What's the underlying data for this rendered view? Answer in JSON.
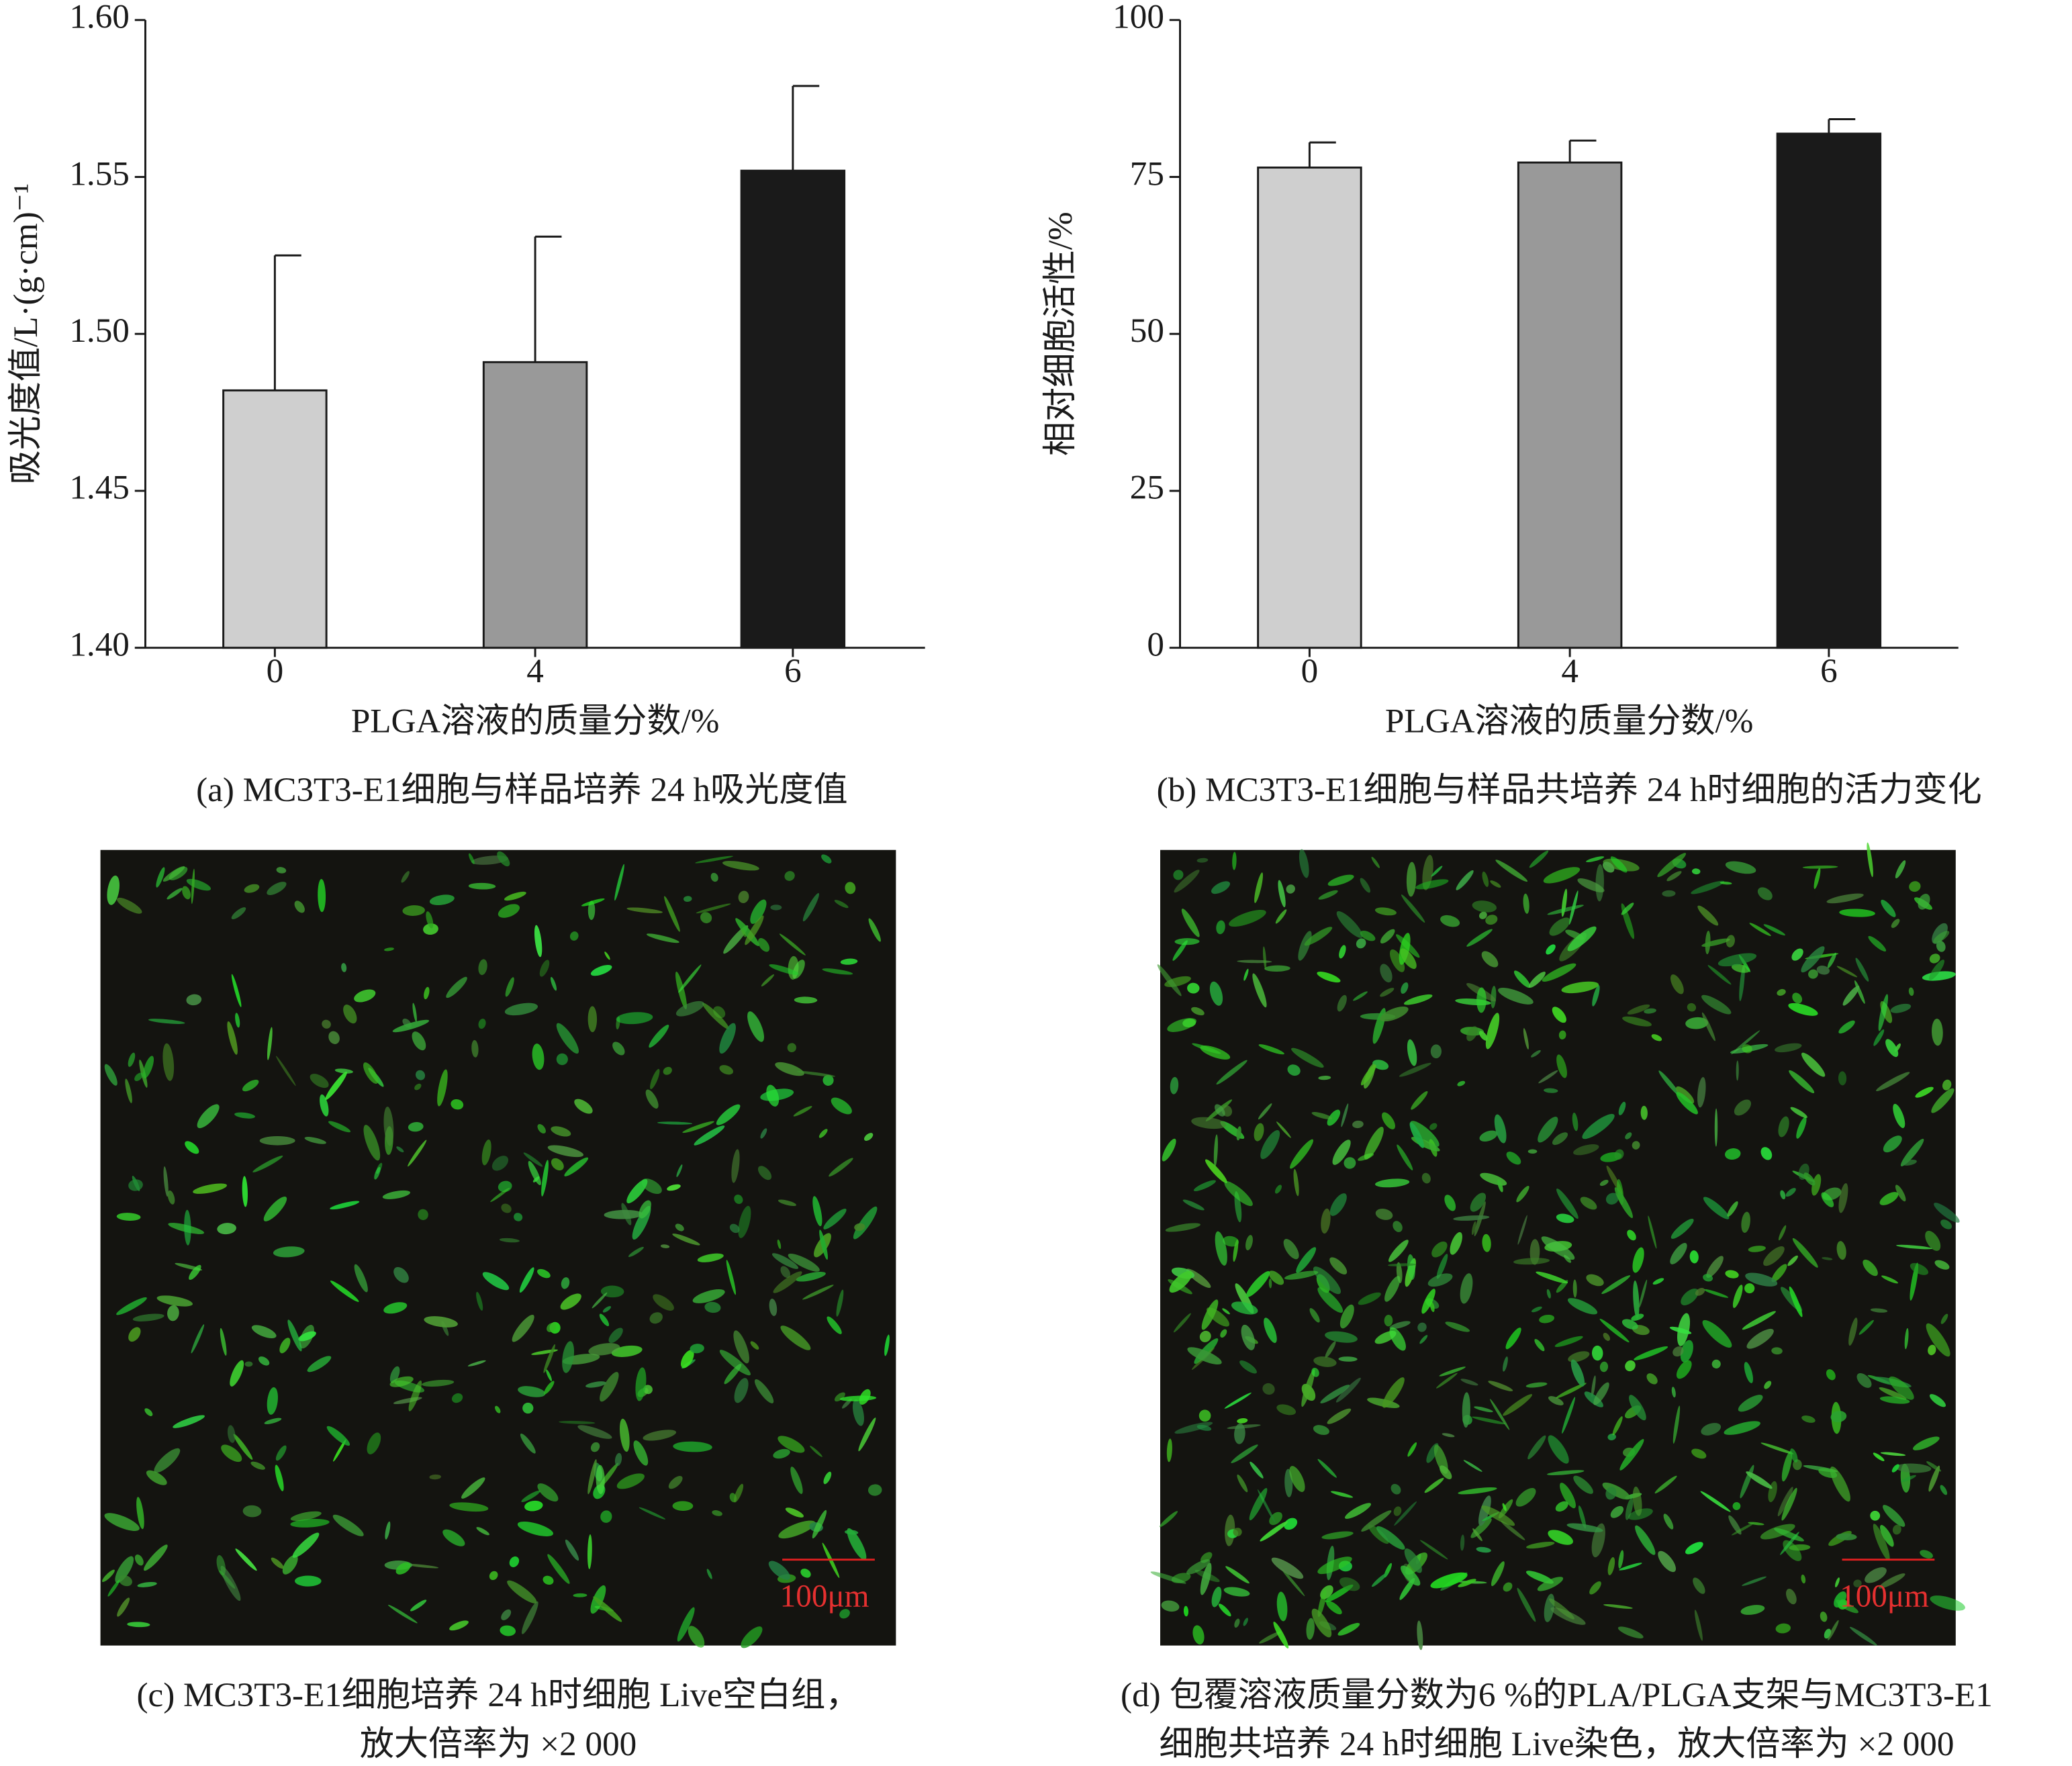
{
  "chart_data": [
    {
      "type": "bar",
      "categories": [
        "0",
        "4",
        "6"
      ],
      "values": [
        1.482,
        1.491,
        1.552
      ],
      "errors": [
        0.043,
        0.04,
        0.027
      ],
      "colors": [
        "#cfcfcf",
        "#999999",
        "#1a1a1a"
      ],
      "ylim": [
        1.4,
        1.6
      ],
      "yticks": [
        {
          "value": 1.4,
          "label": "1.40"
        },
        1.45,
        {
          "value": 1.5,
          "label": "1.50"
        },
        1.55,
        {
          "value": 1.6,
          "label": "1.60"
        }
      ],
      "ylabel": "吸光度值/L·(g·cm)⁻¹",
      "xlabel": "PLGA溶液的质量分数/%",
      "caption": "(a) MC3T3-E1细胞与样品培养 24 h吸光度值"
    },
    {
      "type": "bar",
      "categories": [
        "0",
        "4",
        "6"
      ],
      "values": [
        76.5,
        77.3,
        81.9
      ],
      "errors": [
        4,
        3.5,
        2.3
      ],
      "colors": [
        "#cfcfcf",
        "#999999",
        "#1a1a1a"
      ],
      "ylim": [
        0,
        100
      ],
      "yticks": [
        0,
        25,
        50,
        75,
        100
      ],
      "ylabel": "相对细胞活性/%",
      "xlabel": "PLGA溶液的质量分数/%",
      "caption": "(b) MC3T3-E1细胞与样品共培养 24 h时细胞的活力变化"
    }
  ],
  "images": [
    {
      "scale_bar": "100μm",
      "caption": [
        "(c) MC3T3-E1细胞培养 24 h时细胞 Live空白组，",
        "放大倍率为 ×2 000"
      ]
    },
    {
      "scale_bar": "100μm",
      "caption": [
        "(d) 包覆溶液质量分数为6 %的PLA/PLGA支架与MC3T3-E1",
        "细胞共培养 24 h时细胞 Live染色，放大倍率为 ×2 000"
      ]
    }
  ]
}
